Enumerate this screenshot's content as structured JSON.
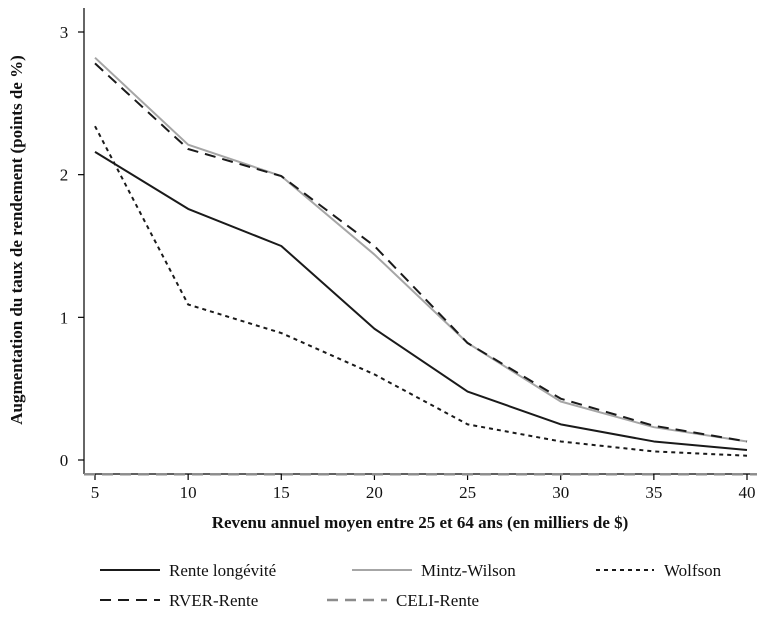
{
  "chart_data": {
    "type": "line",
    "title": "",
    "xlabel": "Revenu annuel moyen entre 25 et 64 ans (en milliers de $)",
    "ylabel": "Augmentation du taux de rendement (points de %)",
    "x": [
      5,
      10,
      15,
      20,
      25,
      30,
      35,
      40
    ],
    "xlim": [
      5,
      40
    ],
    "ylim": [
      -0.1,
      3.15
    ],
    "xticks": [
      5,
      10,
      15,
      20,
      25,
      30,
      35,
      40
    ],
    "yticks": [
      0,
      1,
      2,
      3
    ],
    "grid": false,
    "legend_position": "bottom",
    "series": [
      {
        "name": "Rente longévité",
        "values": [
          2.16,
          1.76,
          1.5,
          0.92,
          0.48,
          0.25,
          0.13,
          0.07
        ],
        "color": "#1a1a1a",
        "dash": "solid"
      },
      {
        "name": "Mintz-Wilson",
        "values": [
          2.82,
          2.21,
          1.99,
          1.44,
          0.82,
          0.41,
          0.23,
          0.13
        ],
        "color": "#a6a6a6",
        "dash": "solid"
      },
      {
        "name": "Wolfson",
        "values": [
          2.34,
          1.09,
          0.89,
          0.6,
          0.25,
          0.13,
          0.06,
          0.03
        ],
        "color": "#1a1a1a",
        "dash": "dotted"
      },
      {
        "name": "RVER-Rente",
        "values": [
          2.78,
          2.18,
          1.99,
          1.5,
          0.82,
          0.43,
          0.24,
          0.13
        ],
        "color": "#1a1a1a",
        "dash": "dashed"
      },
      {
        "name": "CELI-Rente",
        "values": [
          -0.1,
          -0.1,
          -0.1,
          -0.1,
          -0.1,
          -0.1,
          -0.1,
          -0.1
        ],
        "color": "#8c8c8c",
        "dash": "dashed"
      }
    ]
  }
}
